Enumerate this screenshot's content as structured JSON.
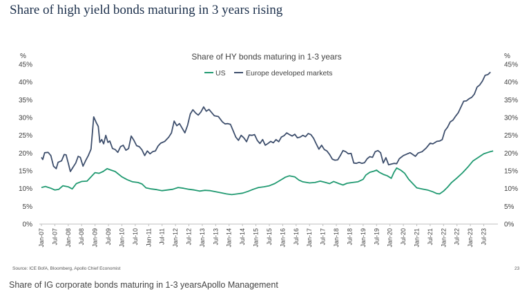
{
  "slide": {
    "title": "Share of high yield bonds maturing in 3 years rising",
    "source": "Source: ICE BofA, Bloomberg, Apollo Chief Economist",
    "page_number": "23"
  },
  "caption": "Share of IG corporate bonds maturing in 1-3 yearsApollo Management",
  "colors": {
    "us": "#1f9970",
    "europe": "#3d4e6c",
    "axis": "#333333",
    "title": "#1a2e4a"
  },
  "chart_data": {
    "type": "line",
    "title": "Share of HY bonds maturing in 1-3 years",
    "ylabel_left": "%",
    "ylabel_right": "%",
    "ylim": [
      0,
      45
    ],
    "yticks": [
      "0%",
      "5%",
      "10%",
      "15%",
      "20%",
      "25%",
      "30%",
      "35%",
      "40%",
      "45%"
    ],
    "xlim": [
      2007.0,
      2023.95
    ],
    "xticks": [
      {
        "label": "Jan-07",
        "x": 2007.0
      },
      {
        "label": "Jul-07",
        "x": 2007.5
      },
      {
        "label": "Jan-08",
        "x": 2008.0
      },
      {
        "label": "Jul-08",
        "x": 2008.5
      },
      {
        "label": "Jan-09",
        "x": 2009.0
      },
      {
        "label": "Jul-09",
        "x": 2009.5
      },
      {
        "label": "Jan-10",
        "x": 2010.0
      },
      {
        "label": "Jul-10",
        "x": 2010.5
      },
      {
        "label": "Jan-11",
        "x": 2011.0
      },
      {
        "label": "Jul-11",
        "x": 2011.5
      },
      {
        "label": "Jan-12",
        "x": 2012.0
      },
      {
        "label": "Jul-12",
        "x": 2012.5
      },
      {
        "label": "Jan-13",
        "x": 2013.0
      },
      {
        "label": "Jul-13",
        "x": 2013.5
      },
      {
        "label": "Jan-14",
        "x": 2014.0
      },
      {
        "label": "Jul-14",
        "x": 2014.5
      },
      {
        "label": "Jan-15",
        "x": 2015.0
      },
      {
        "label": "Jul-15",
        "x": 2015.5
      },
      {
        "label": "Jan-16",
        "x": 2016.0
      },
      {
        "label": "Jul-16",
        "x": 2016.5
      },
      {
        "label": "Jan-17",
        "x": 2017.0
      },
      {
        "label": "Jul-17",
        "x": 2017.5
      },
      {
        "label": "Jan-18",
        "x": 2018.0
      },
      {
        "label": "Jul-18",
        "x": 2018.5
      },
      {
        "label": "Jan-19",
        "x": 2019.0
      },
      {
        "label": "Jul-19",
        "x": 2019.5
      },
      {
        "label": "Jan-20",
        "x": 2020.0
      },
      {
        "label": "Jul-20",
        "x": 2020.5
      },
      {
        "label": "Jan-21",
        "x": 2021.0
      },
      {
        "label": "Jul-21",
        "x": 2021.5
      },
      {
        "label": "Jan-22",
        "x": 2022.0
      },
      {
        "label": "Jul-22",
        "x": 2022.5
      },
      {
        "label": "Jan-23",
        "x": 2023.0
      },
      {
        "label": "Jul-23",
        "x": 2023.5
      }
    ],
    "legend": [
      "US",
      "Europe developed markets"
    ],
    "series": [
      {
        "name": "US",
        "points": [
          [
            2007.0,
            10.3
          ],
          [
            2007.15,
            10.6
          ],
          [
            2007.35,
            10.1
          ],
          [
            2007.5,
            9.6
          ],
          [
            2007.65,
            9.8
          ],
          [
            2007.8,
            10.8
          ],
          [
            2008.0,
            10.5
          ],
          [
            2008.15,
            9.9
          ],
          [
            2008.3,
            11.4
          ],
          [
            2008.5,
            12.0
          ],
          [
            2008.7,
            12.1
          ],
          [
            2008.85,
            13.3
          ],
          [
            2009.0,
            14.5
          ],
          [
            2009.15,
            14.3
          ],
          [
            2009.3,
            14.8
          ],
          [
            2009.45,
            15.6
          ],
          [
            2009.6,
            15.2
          ],
          [
            2009.75,
            14.8
          ],
          [
            2010.0,
            13.3
          ],
          [
            2010.2,
            12.5
          ],
          [
            2010.4,
            11.9
          ],
          [
            2010.6,
            11.7
          ],
          [
            2010.75,
            11.3
          ],
          [
            2010.9,
            10.2
          ],
          [
            2011.1,
            9.9
          ],
          [
            2011.3,
            9.7
          ],
          [
            2011.5,
            9.4
          ],
          [
            2011.7,
            9.6
          ],
          [
            2011.9,
            9.8
          ],
          [
            2012.1,
            10.3
          ],
          [
            2012.3,
            10.1
          ],
          [
            2012.5,
            9.8
          ],
          [
            2012.7,
            9.6
          ],
          [
            2012.9,
            9.3
          ],
          [
            2013.1,
            9.5
          ],
          [
            2013.3,
            9.4
          ],
          [
            2013.5,
            9.1
          ],
          [
            2013.7,
            8.8
          ],
          [
            2013.9,
            8.5
          ],
          [
            2014.1,
            8.3
          ],
          [
            2014.3,
            8.5
          ],
          [
            2014.5,
            8.7
          ],
          [
            2014.7,
            9.2
          ],
          [
            2014.9,
            9.8
          ],
          [
            2015.1,
            10.3
          ],
          [
            2015.3,
            10.5
          ],
          [
            2015.5,
            10.8
          ],
          [
            2015.7,
            11.4
          ],
          [
            2015.9,
            12.3
          ],
          [
            2016.1,
            13.2
          ],
          [
            2016.25,
            13.6
          ],
          [
            2016.45,
            13.3
          ],
          [
            2016.6,
            12.4
          ],
          [
            2016.75,
            11.9
          ],
          [
            2017.0,
            11.6
          ],
          [
            2017.2,
            11.7
          ],
          [
            2017.4,
            12.1
          ],
          [
            2017.55,
            11.8
          ],
          [
            2017.75,
            11.4
          ],
          [
            2017.9,
            12.0
          ],
          [
            2018.1,
            11.4
          ],
          [
            2018.25,
            11.0
          ],
          [
            2018.4,
            11.5
          ],
          [
            2018.6,
            11.7
          ],
          [
            2018.8,
            11.9
          ],
          [
            2019.0,
            12.6
          ],
          [
            2019.1,
            13.8
          ],
          [
            2019.25,
            14.6
          ],
          [
            2019.4,
            14.9
          ],
          [
            2019.5,
            15.2
          ],
          [
            2019.6,
            14.6
          ],
          [
            2019.75,
            14.0
          ],
          [
            2019.9,
            13.6
          ],
          [
            2020.05,
            12.9
          ],
          [
            2020.15,
            14.6
          ],
          [
            2020.25,
            15.8
          ],
          [
            2020.4,
            15.2
          ],
          [
            2020.55,
            14.3
          ],
          [
            2020.7,
            12.6
          ],
          [
            2020.85,
            11.4
          ],
          [
            2021.0,
            10.2
          ],
          [
            2021.2,
            9.9
          ],
          [
            2021.4,
            9.6
          ],
          [
            2021.6,
            9.1
          ],
          [
            2021.75,
            8.6
          ],
          [
            2021.85,
            8.5
          ],
          [
            2022.0,
            9.3
          ],
          [
            2022.15,
            10.4
          ],
          [
            2022.3,
            11.7
          ],
          [
            2022.5,
            13.0
          ],
          [
            2022.7,
            14.4
          ],
          [
            2022.9,
            16.0
          ],
          [
            2023.1,
            17.8
          ],
          [
            2023.3,
            18.8
          ],
          [
            2023.5,
            19.8
          ],
          [
            2023.7,
            20.3
          ],
          [
            2023.85,
            20.6
          ]
        ]
      },
      {
        "name": "Europe developed markets",
        "points": [
          [
            2007.0,
            18.8
          ],
          [
            2007.05,
            18.2
          ],
          [
            2007.12,
            20.1
          ],
          [
            2007.25,
            20.2
          ],
          [
            2007.35,
            19.3
          ],
          [
            2007.45,
            16.3
          ],
          [
            2007.55,
            15.6
          ],
          [
            2007.62,
            17.4
          ],
          [
            2007.75,
            17.8
          ],
          [
            2007.85,
            19.6
          ],
          [
            2007.92,
            19.5
          ],
          [
            2008.0,
            17.2
          ],
          [
            2008.08,
            14.8
          ],
          [
            2008.17,
            15.9
          ],
          [
            2008.28,
            17.2
          ],
          [
            2008.37,
            19.1
          ],
          [
            2008.45,
            18.8
          ],
          [
            2008.55,
            16.3
          ],
          [
            2008.65,
            17.9
          ],
          [
            2008.75,
            19.3
          ],
          [
            2008.85,
            21.1
          ],
          [
            2008.95,
            30.2
          ],
          [
            2009.05,
            28.5
          ],
          [
            2009.12,
            27.5
          ],
          [
            2009.18,
            23.0
          ],
          [
            2009.25,
            23.8
          ],
          [
            2009.32,
            22.6
          ],
          [
            2009.4,
            25.0
          ],
          [
            2009.48,
            23.0
          ],
          [
            2009.55,
            23.4
          ],
          [
            2009.65,
            21.3
          ],
          [
            2009.75,
            21.0
          ],
          [
            2009.85,
            20.2
          ],
          [
            2009.95,
            21.8
          ],
          [
            2010.05,
            22.2
          ],
          [
            2010.15,
            20.8
          ],
          [
            2010.25,
            21.3
          ],
          [
            2010.35,
            24.8
          ],
          [
            2010.45,
            23.6
          ],
          [
            2010.55,
            22.1
          ],
          [
            2010.65,
            21.8
          ],
          [
            2010.75,
            20.9
          ],
          [
            2010.85,
            19.3
          ],
          [
            2010.95,
            20.6
          ],
          [
            2011.05,
            19.8
          ],
          [
            2011.15,
            20.4
          ],
          [
            2011.25,
            20.6
          ],
          [
            2011.35,
            22.0
          ],
          [
            2011.45,
            22.8
          ],
          [
            2011.6,
            23.3
          ],
          [
            2011.75,
            24.5
          ],
          [
            2011.85,
            25.7
          ],
          [
            2011.95,
            29.0
          ],
          [
            2012.05,
            27.7
          ],
          [
            2012.15,
            28.3
          ],
          [
            2012.25,
            27.0
          ],
          [
            2012.35,
            25.7
          ],
          [
            2012.45,
            27.8
          ],
          [
            2012.55,
            31.0
          ],
          [
            2012.65,
            32.2
          ],
          [
            2012.75,
            31.3
          ],
          [
            2012.85,
            30.7
          ],
          [
            2012.95,
            31.6
          ],
          [
            2013.05,
            33.0
          ],
          [
            2013.15,
            31.8
          ],
          [
            2013.25,
            32.3
          ],
          [
            2013.35,
            31.4
          ],
          [
            2013.45,
            30.5
          ],
          [
            2013.6,
            30.3
          ],
          [
            2013.75,
            28.8
          ],
          [
            2013.85,
            28.2
          ],
          [
            2013.95,
            28.3
          ],
          [
            2014.05,
            28.1
          ],
          [
            2014.15,
            26.3
          ],
          [
            2014.25,
            24.5
          ],
          [
            2014.35,
            23.6
          ],
          [
            2014.45,
            25.0
          ],
          [
            2014.55,
            24.3
          ],
          [
            2014.65,
            23.2
          ],
          [
            2014.75,
            25.1
          ],
          [
            2014.85,
            25.0
          ],
          [
            2014.95,
            25.2
          ],
          [
            2015.05,
            23.6
          ],
          [
            2015.15,
            22.7
          ],
          [
            2015.25,
            23.8
          ],
          [
            2015.35,
            22.2
          ],
          [
            2015.45,
            22.7
          ],
          [
            2015.55,
            23.3
          ],
          [
            2015.65,
            22.9
          ],
          [
            2015.75,
            23.8
          ],
          [
            2015.85,
            23.2
          ],
          [
            2015.95,
            24.5
          ],
          [
            2016.05,
            24.9
          ],
          [
            2016.15,
            25.7
          ],
          [
            2016.25,
            25.2
          ],
          [
            2016.35,
            24.8
          ],
          [
            2016.45,
            25.3
          ],
          [
            2016.55,
            24.3
          ],
          [
            2016.65,
            24.5
          ],
          [
            2016.75,
            25.0
          ],
          [
            2016.85,
            24.6
          ],
          [
            2016.95,
            25.5
          ],
          [
            2017.05,
            25.2
          ],
          [
            2017.15,
            24.2
          ],
          [
            2017.25,
            22.6
          ],
          [
            2017.35,
            21.1
          ],
          [
            2017.45,
            22.2
          ],
          [
            2017.55,
            21.0
          ],
          [
            2017.65,
            20.6
          ],
          [
            2017.75,
            19.6
          ],
          [
            2017.85,
            18.3
          ],
          [
            2017.95,
            18.0
          ],
          [
            2018.05,
            18.1
          ],
          [
            2018.15,
            19.3
          ],
          [
            2018.25,
            20.7
          ],
          [
            2018.35,
            20.4
          ],
          [
            2018.45,
            19.8
          ],
          [
            2018.55,
            19.9
          ],
          [
            2018.65,
            17.2
          ],
          [
            2018.75,
            17.1
          ],
          [
            2018.85,
            17.4
          ],
          [
            2018.95,
            17.1
          ],
          [
            2019.05,
            17.3
          ],
          [
            2019.15,
            18.4
          ],
          [
            2019.25,
            19.0
          ],
          [
            2019.35,
            18.8
          ],
          [
            2019.45,
            20.4
          ],
          [
            2019.55,
            20.7
          ],
          [
            2019.65,
            20.1
          ],
          [
            2019.75,
            17.2
          ],
          [
            2019.85,
            18.7
          ],
          [
            2019.95,
            16.7
          ],
          [
            2020.05,
            16.9
          ],
          [
            2020.15,
            17.1
          ],
          [
            2020.25,
            17.0
          ],
          [
            2020.35,
            18.4
          ],
          [
            2020.5,
            19.3
          ],
          [
            2020.65,
            19.8
          ],
          [
            2020.75,
            20.1
          ],
          [
            2020.85,
            19.6
          ],
          [
            2020.95,
            19.1
          ],
          [
            2021.05,
            20.0
          ],
          [
            2021.2,
            20.4
          ],
          [
            2021.35,
            21.4
          ],
          [
            2021.5,
            22.8
          ],
          [
            2021.6,
            22.6
          ],
          [
            2021.75,
            23.3
          ],
          [
            2021.85,
            23.4
          ],
          [
            2021.95,
            23.8
          ],
          [
            2022.05,
            26.3
          ],
          [
            2022.15,
            27.3
          ],
          [
            2022.25,
            28.8
          ],
          [
            2022.35,
            29.3
          ],
          [
            2022.45,
            30.4
          ],
          [
            2022.55,
            31.4
          ],
          [
            2022.65,
            33.0
          ],
          [
            2022.75,
            34.6
          ],
          [
            2022.85,
            34.7
          ],
          [
            2022.95,
            35.3
          ],
          [
            2023.05,
            35.7
          ],
          [
            2023.15,
            36.6
          ],
          [
            2023.25,
            38.6
          ],
          [
            2023.35,
            39.2
          ],
          [
            2023.45,
            40.3
          ],
          [
            2023.55,
            41.9
          ],
          [
            2023.65,
            42.1
          ],
          [
            2023.75,
            42.8
          ]
        ]
      }
    ]
  }
}
